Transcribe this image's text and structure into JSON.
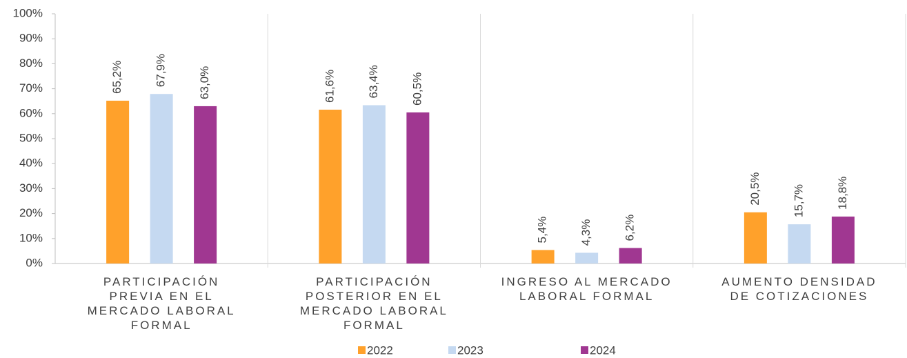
{
  "chart_data": {
    "type": "bar",
    "categories": [
      "PARTICIPACIÓN\nPREVIA EN EL\nMERCADO LABORAL\nFORMAL",
      "PARTICIPACIÓN\nPOSTERIOR EN EL\nMERCADO LABORAL\nFORMAL",
      "INGRESO AL MERCADO\nLABORAL FORMAL",
      "AUMENTO DENSIDAD\nDE COTIZACIONES"
    ],
    "series": [
      {
        "name": "2022",
        "color": "#ffa12b",
        "values": [
          65.2,
          61.6,
          5.4,
          20.5
        ],
        "value_labels": [
          "65,2%",
          "61,6%",
          "5,4%",
          "20,5%"
        ]
      },
      {
        "name": "2023",
        "color": "#c5d9f1",
        "values": [
          67.9,
          63.4,
          4.3,
          15.7
        ],
        "value_labels": [
          "67,9%",
          "63,4%",
          "4,3%",
          "15,7%"
        ]
      },
      {
        "name": "2024",
        "color": "#a03791",
        "values": [
          63.0,
          60.5,
          6.2,
          18.8
        ],
        "value_labels": [
          "63,0%",
          "60,5%",
          "6,2%",
          "18,8%"
        ]
      }
    ],
    "ylim": [
      0,
      100
    ],
    "yticks": [
      {
        "value": 0,
        "label": "0%"
      },
      {
        "value": 10,
        "label": "10%"
      },
      {
        "value": 20,
        "label": "20%"
      },
      {
        "value": 30,
        "label": "30%"
      },
      {
        "value": 40,
        "label": "40%"
      },
      {
        "value": 50,
        "label": "50%"
      },
      {
        "value": 60,
        "label": "60%"
      },
      {
        "value": 70,
        "label": "70%"
      },
      {
        "value": 80,
        "label": "80%"
      },
      {
        "value": 90,
        "label": "90%"
      },
      {
        "value": 100,
        "label": "100%"
      }
    ],
    "legend": "bottom"
  }
}
